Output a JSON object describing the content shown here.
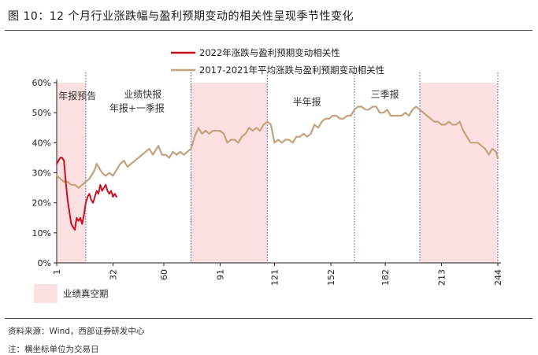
{
  "header": {
    "title": "图 10：12 个月行业涨跌幅与盈利预期变动的相关性呈现季节性变化"
  },
  "footer": {
    "source": "资料来源：Wind，西部证券研发中心",
    "note": "注：横坐标单位为交易日"
  },
  "chart_data": {
    "type": "line",
    "x_ticks": [
      1,
      32,
      60,
      91,
      121,
      152,
      182,
      213,
      244
    ],
    "y_ticks": [
      "0%",
      "10%",
      "20%",
      "30%",
      "40%",
      "50%",
      "60%"
    ],
    "xlim": [
      1,
      244
    ],
    "ylim": [
      0,
      0.6
    ],
    "grid": false,
    "legend_position": "top",
    "shaded_regions": [
      [
        1,
        17
      ],
      [
        75,
        117
      ],
      [
        201,
        244
      ]
    ],
    "shaded_label": "业绩真空期",
    "vlines": [
      17,
      75,
      117,
      165,
      201,
      244
    ],
    "annotations": [
      {
        "text": "年报预告",
        "x": 2,
        "y": 0.545
      },
      {
        "text": "业绩快报",
        "x": 38,
        "y": 0.55
      },
      {
        "text": "年报+一季报",
        "x": 30,
        "y": 0.505
      },
      {
        "text": "半年报",
        "x": 131,
        "y": 0.525
      },
      {
        "text": "三季报",
        "x": 174,
        "y": 0.55
      }
    ],
    "series": [
      {
        "name": "2022年涨跌与盈利预期变动相关性",
        "color": "#c9101f",
        "points": [
          [
            1,
            0.33
          ],
          [
            2,
            0.34
          ],
          [
            3,
            0.35
          ],
          [
            4,
            0.35
          ],
          [
            5,
            0.34
          ],
          [
            6,
            0.27
          ],
          [
            7,
            0.21
          ],
          [
            8,
            0.17
          ],
          [
            9,
            0.13
          ],
          [
            10,
            0.12
          ],
          [
            11,
            0.11
          ],
          [
            12,
            0.15
          ],
          [
            13,
            0.14
          ],
          [
            14,
            0.15
          ],
          [
            15,
            0.13
          ],
          [
            16,
            0.16
          ],
          [
            17,
            0.2
          ],
          [
            18,
            0.22
          ],
          [
            19,
            0.23
          ],
          [
            20,
            0.21
          ],
          [
            21,
            0.2
          ],
          [
            22,
            0.22
          ],
          [
            23,
            0.24
          ],
          [
            24,
            0.23
          ],
          [
            25,
            0.26
          ],
          [
            26,
            0.24
          ],
          [
            27,
            0.25
          ],
          [
            28,
            0.26
          ],
          [
            29,
            0.24
          ],
          [
            30,
            0.23
          ],
          [
            31,
            0.24
          ],
          [
            32,
            0.22
          ],
          [
            33,
            0.23
          ],
          [
            34,
            0.22
          ]
        ]
      },
      {
        "name": "2017-2021年平均涨跌与盈利预期变动相关性",
        "color": "#c4a27e",
        "points": [
          [
            1,
            0.29
          ],
          [
            3,
            0.28
          ],
          [
            5,
            0.27
          ],
          [
            7,
            0.27
          ],
          [
            9,
            0.26
          ],
          [
            11,
            0.26
          ],
          [
            13,
            0.25
          ],
          [
            15,
            0.26
          ],
          [
            17,
            0.27
          ],
          [
            19,
            0.28
          ],
          [
            21,
            0.3
          ],
          [
            22,
            0.31
          ],
          [
            23,
            0.33
          ],
          [
            24,
            0.32
          ],
          [
            26,
            0.3
          ],
          [
            28,
            0.29
          ],
          [
            30,
            0.3
          ],
          [
            32,
            0.29
          ],
          [
            34,
            0.31
          ],
          [
            36,
            0.33
          ],
          [
            38,
            0.34
          ],
          [
            40,
            0.32
          ],
          [
            42,
            0.33
          ],
          [
            44,
            0.34
          ],
          [
            46,
            0.35
          ],
          [
            48,
            0.36
          ],
          [
            50,
            0.37
          ],
          [
            52,
            0.38
          ],
          [
            54,
            0.36
          ],
          [
            56,
            0.38
          ],
          [
            57,
            0.39
          ],
          [
            59,
            0.36
          ],
          [
            61,
            0.36
          ],
          [
            63,
            0.35
          ],
          [
            65,
            0.37
          ],
          [
            67,
            0.36
          ],
          [
            69,
            0.37
          ],
          [
            71,
            0.36
          ],
          [
            73,
            0.37
          ],
          [
            75,
            0.38
          ],
          [
            77,
            0.42
          ],
          [
            79,
            0.45
          ],
          [
            81,
            0.43
          ],
          [
            83,
            0.44
          ],
          [
            85,
            0.43
          ],
          [
            87,
            0.44
          ],
          [
            89,
            0.44
          ],
          [
            91,
            0.44
          ],
          [
            93,
            0.43
          ],
          [
            95,
            0.4
          ],
          [
            97,
            0.41
          ],
          [
            99,
            0.41
          ],
          [
            101,
            0.4
          ],
          [
            103,
            0.42
          ],
          [
            105,
            0.43
          ],
          [
            107,
            0.45
          ],
          [
            109,
            0.44
          ],
          [
            111,
            0.45
          ],
          [
            113,
            0.44
          ],
          [
            115,
            0.46
          ],
          [
            117,
            0.47
          ],
          [
            119,
            0.46
          ],
          [
            121,
            0.4
          ],
          [
            123,
            0.41
          ],
          [
            125,
            0.4
          ],
          [
            127,
            0.41
          ],
          [
            129,
            0.41
          ],
          [
            131,
            0.4
          ],
          [
            133,
            0.42
          ],
          [
            135,
            0.42
          ],
          [
            137,
            0.43
          ],
          [
            139,
            0.42
          ],
          [
            141,
            0.43
          ],
          [
            143,
            0.46
          ],
          [
            145,
            0.45
          ],
          [
            147,
            0.47
          ],
          [
            149,
            0.48
          ],
          [
            151,
            0.48
          ],
          [
            153,
            0.49
          ],
          [
            155,
            0.49
          ],
          [
            157,
            0.48
          ],
          [
            159,
            0.48
          ],
          [
            161,
            0.49
          ],
          [
            163,
            0.49
          ],
          [
            165,
            0.51
          ],
          [
            167,
            0.52
          ],
          [
            169,
            0.52
          ],
          [
            171,
            0.51
          ],
          [
            173,
            0.51
          ],
          [
            175,
            0.52
          ],
          [
            177,
            0.52
          ],
          [
            179,
            0.5
          ],
          [
            181,
            0.5
          ],
          [
            183,
            0.51
          ],
          [
            185,
            0.49
          ],
          [
            187,
            0.49
          ],
          [
            189,
            0.49
          ],
          [
            191,
            0.49
          ],
          [
            193,
            0.5
          ],
          [
            195,
            0.49
          ],
          [
            197,
            0.51
          ],
          [
            199,
            0.52
          ],
          [
            201,
            0.51
          ],
          [
            203,
            0.5
          ],
          [
            205,
            0.49
          ],
          [
            207,
            0.48
          ],
          [
            209,
            0.47
          ],
          [
            211,
            0.47
          ],
          [
            213,
            0.46
          ],
          [
            215,
            0.46
          ],
          [
            217,
            0.47
          ],
          [
            219,
            0.46
          ],
          [
            221,
            0.46
          ],
          [
            223,
            0.47
          ],
          [
            225,
            0.44
          ],
          [
            227,
            0.42
          ],
          [
            229,
            0.4
          ],
          [
            231,
            0.4
          ],
          [
            233,
            0.4
          ],
          [
            235,
            0.39
          ],
          [
            237,
            0.38
          ],
          [
            239,
            0.36
          ],
          [
            241,
            0.38
          ],
          [
            243,
            0.37
          ],
          [
            244,
            0.35
          ]
        ]
      }
    ]
  }
}
